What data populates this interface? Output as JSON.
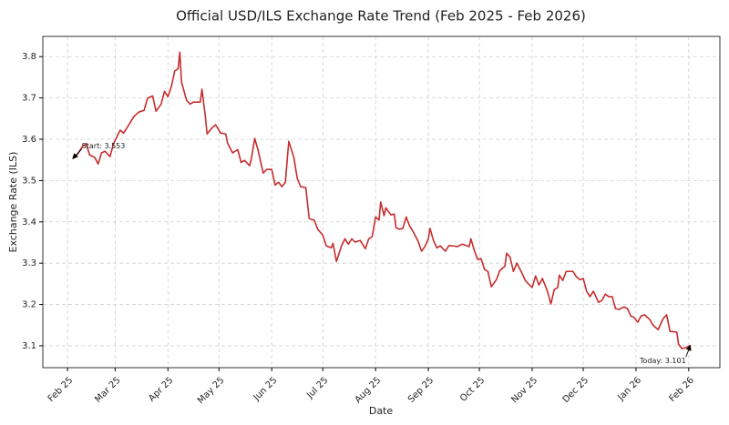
{
  "chart_data": {
    "type": "line",
    "title": "Official USD/ILS Exchange Rate Trend (Feb 2025 - Feb 2026)",
    "x_label": "Date",
    "y_label": "Exchange Rate (ILS)",
    "xlim": [
      -14.5,
      383.3
    ],
    "ylim": [
      3.047,
      3.849
    ],
    "xticks": [
      {
        "value": 0,
        "label": "Feb 25"
      },
      {
        "value": 28,
        "label": "Mar 25"
      },
      {
        "value": 59,
        "label": "Apr 25"
      },
      {
        "value": 89,
        "label": "May 25"
      },
      {
        "value": 120,
        "label": "Jun 25"
      },
      {
        "value": 150,
        "label": "Jul 25"
      },
      {
        "value": 181,
        "label": "Aug 25"
      },
      {
        "value": 212,
        "label": "Sep 25"
      },
      {
        "value": 242,
        "label": "Oct 25"
      },
      {
        "value": 273,
        "label": "Nov 25"
      },
      {
        "value": 303,
        "label": "Dec 25"
      },
      {
        "value": 334,
        "label": "Jan 26"
      },
      {
        "value": 365,
        "label": "Feb 26"
      }
    ],
    "yticks": [
      3.1,
      3.2,
      3.3,
      3.4,
      3.5,
      3.6,
      3.7,
      3.8
    ],
    "grid": true,
    "series": [
      {
        "name": "USD/ILS",
        "color": "#c62d2d",
        "x": [
          3,
          5,
          9,
          11,
          13,
          16,
          18,
          20,
          22,
          25,
          27,
          29,
          31,
          33,
          35,
          39,
          42,
          45,
          47,
          50,
          52,
          55,
          57,
          59,
          61,
          63,
          65,
          66,
          67,
          70,
          72,
          74,
          78,
          79,
          81,
          82,
          85,
          87,
          90,
          93,
          94,
          97,
          100,
          102,
          104,
          107,
          108,
          110,
          112,
          115,
          117,
          120,
          122,
          124,
          126,
          128,
          130,
          133,
          135,
          137,
          140,
          142,
          145,
          147,
          150,
          152,
          155,
          156,
          158,
          161,
          163,
          165,
          167,
          169,
          172,
          175,
          177,
          179,
          181,
          183,
          184,
          186,
          187,
          190,
          192,
          193,
          195,
          197,
          199,
          201,
          203,
          206,
          208,
          210,
          212,
          213,
          215,
          217,
          219,
          222,
          224,
          226,
          229,
          232,
          236,
          237,
          239,
          241,
          243,
          245,
          247,
          249,
          252,
          254,
          257,
          258,
          260,
          262,
          264,
          267,
          269,
          271,
          273,
          275,
          277,
          279,
          282,
          284,
          286,
          288,
          289,
          291,
          293,
          297,
          299,
          301,
          303,
          305,
          307,
          309,
          312,
          314,
          316,
          318,
          320,
          322,
          324,
          327,
          329,
          331,
          333,
          335,
          337,
          339,
          342,
          344,
          347,
          350,
          352,
          354,
          358,
          359,
          361,
          363,
          366
        ],
        "values": [
          3.553,
          3.558,
          3.584,
          3.589,
          3.562,
          3.556,
          3.54,
          3.567,
          3.571,
          3.558,
          3.589,
          3.606,
          3.622,
          3.615,
          3.628,
          3.655,
          3.666,
          3.67,
          3.699,
          3.705,
          3.668,
          3.685,
          3.716,
          3.703,
          3.727,
          3.765,
          3.771,
          3.811,
          3.738,
          3.694,
          3.685,
          3.69,
          3.69,
          3.721,
          3.655,
          3.613,
          3.628,
          3.635,
          3.615,
          3.613,
          3.591,
          3.567,
          3.575,
          3.544,
          3.549,
          3.536,
          3.553,
          3.602,
          3.573,
          3.518,
          3.527,
          3.527,
          3.489,
          3.496,
          3.485,
          3.496,
          3.595,
          3.556,
          3.505,
          3.485,
          3.483,
          3.408,
          3.404,
          3.382,
          3.368,
          3.342,
          3.337,
          3.348,
          3.304,
          3.342,
          3.359,
          3.346,
          3.359,
          3.351,
          3.355,
          3.335,
          3.359,
          3.364,
          3.412,
          3.404,
          3.448,
          3.415,
          3.434,
          3.417,
          3.419,
          3.386,
          3.382,
          3.384,
          3.412,
          3.39,
          3.377,
          3.353,
          3.329,
          3.34,
          3.359,
          3.384,
          3.355,
          3.337,
          3.342,
          3.329,
          3.342,
          3.342,
          3.34,
          3.346,
          3.34,
          3.359,
          3.331,
          3.309,
          3.311,
          3.285,
          3.28,
          3.243,
          3.26,
          3.282,
          3.293,
          3.324,
          3.315,
          3.28,
          3.3,
          3.276,
          3.258,
          3.249,
          3.241,
          3.269,
          3.247,
          3.263,
          3.232,
          3.201,
          3.236,
          3.241,
          3.271,
          3.258,
          3.28,
          3.28,
          3.267,
          3.26,
          3.263,
          3.232,
          3.219,
          3.232,
          3.205,
          3.21,
          3.225,
          3.219,
          3.219,
          3.19,
          3.188,
          3.194,
          3.19,
          3.172,
          3.168,
          3.157,
          3.172,
          3.175,
          3.164,
          3.15,
          3.139,
          3.166,
          3.175,
          3.135,
          3.133,
          3.104,
          3.093,
          3.095,
          3.101
        ]
      }
    ],
    "annotations": [
      {
        "text": "Start: 3.553"
      },
      {
        "text": "Today: 3.101"
      }
    ]
  }
}
